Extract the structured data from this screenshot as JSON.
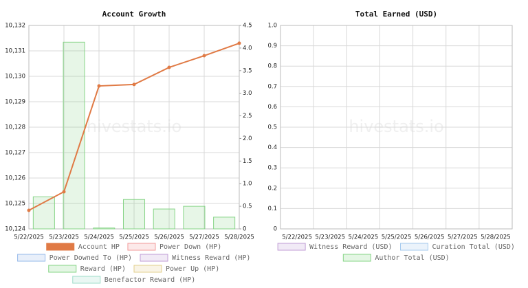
{
  "chart_data": [
    {
      "type": "combo",
      "title": "Account Growth",
      "watermark": "hivestats.io",
      "categories": [
        "5/22/2025",
        "5/23/2025",
        "5/24/2025",
        "5/25/2025",
        "5/26/2025",
        "5/27/2025",
        "5/28/2025"
      ],
      "ylim": [
        10124,
        10132
      ],
      "yticks": [
        {
          "value": 10124,
          "label": "10,124"
        },
        {
          "value": 10125,
          "label": "10,125"
        },
        {
          "value": 10126,
          "label": "10,126"
        },
        {
          "value": 10127,
          "label": "10,127"
        },
        {
          "value": 10128,
          "label": "10,128"
        },
        {
          "value": 10129,
          "label": "10,129"
        },
        {
          "value": 10130,
          "label": "10,130"
        },
        {
          "value": 10131,
          "label": "10,131"
        },
        {
          "value": 10132,
          "label": "10,132"
        }
      ],
      "y2lim": [
        0,
        4.5
      ],
      "y2ticks": [
        0,
        0.5,
        {
          "value": 1,
          "label": "1.0"
        },
        1.5,
        {
          "value": 2,
          "label": "2.0"
        },
        2.5,
        {
          "value": 3,
          "label": "3.0"
        },
        3.5,
        {
          "value": 4,
          "label": "4.0"
        },
        4.5
      ],
      "grid": true,
      "legend": "bottom",
      "series": [
        {
          "name": "Account HP",
          "type": "line",
          "color": "#e07a45",
          "values": [
            10124.73,
            10125.46,
            10129.62,
            10129.68,
            10130.35,
            10130.81,
            10131.3
          ]
        },
        {
          "name": "Power Down (HP)",
          "type": "bar",
          "color": "#f29a9a"
        },
        {
          "name": "Power Downed To (HP)",
          "type": "bar",
          "color": "#94b8ea"
        },
        {
          "name": "Witness Reward (HP)",
          "type": "bar",
          "color": "#c09ed6"
        },
        {
          "name": "Reward (HP)",
          "type": "bar",
          "axis": "y2",
          "color": "#86d486",
          "values": [
            0.71,
            4.13,
            0.02,
            0.65,
            0.44,
            0.5,
            0.26
          ]
        },
        {
          "name": "Power Up (HP)",
          "type": "bar",
          "color": "#e2cf8c"
        },
        {
          "name": "Benefactor Reward (HP)",
          "type": "bar",
          "color": "#9edcc8"
        }
      ]
    },
    {
      "type": "bar",
      "title": "Total Earned (USD)",
      "watermark": "hivestats.io",
      "categories": [
        "5/22/2025",
        "5/23/2025",
        "5/24/2025",
        "5/25/2025",
        "5/26/2025",
        "5/27/2025",
        "5/28/2025"
      ],
      "ylim": [
        0,
        1
      ],
      "yticks": [
        0,
        0.1,
        0.2,
        0.3,
        0.4,
        0.5,
        0.6,
        0.7,
        0.8,
        0.9,
        {
          "value": 1,
          "label": "1.0"
        }
      ],
      "grid": true,
      "legend": "bottom",
      "series": [
        {
          "name": "Witness Reward (USD)",
          "type": "bar",
          "color": "#c09ed6"
        },
        {
          "name": "Curation Total (USD)",
          "type": "bar",
          "color": "#a4c9ee"
        },
        {
          "name": "Author Total (USD)",
          "type": "bar",
          "color": "#86d486"
        }
      ]
    }
  ]
}
